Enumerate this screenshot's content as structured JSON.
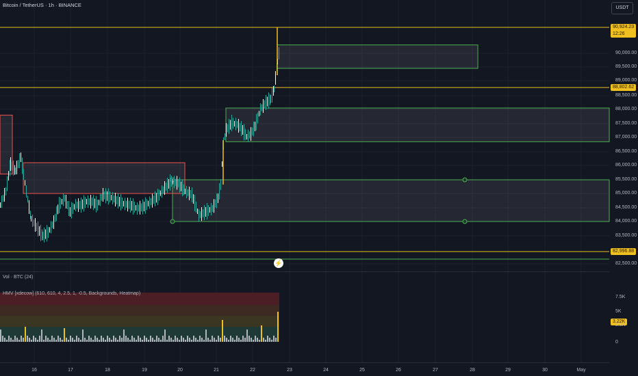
{
  "header": {
    "title": "Bitcoin / TetherUS · 1h · BINANCE",
    "currency": "USDT"
  },
  "colors": {
    "background": "#131722",
    "candle_up": "#26a69a",
    "candle_hi": "#ffffff",
    "green_zone": "#4caf50",
    "red_zone": "#ef5350",
    "yellow_line": "#f0c020",
    "grid": "#1e222d"
  },
  "price_axis": {
    "ticks": [
      "90,000.00",
      "89,500.00",
      "89,000.00",
      "88,500.00",
      "88,000.00",
      "87,500.00",
      "87,000.00",
      "86,500.00",
      "86,000.00",
      "85,500.00",
      "85,000.00",
      "84,500.00",
      "84,000.00",
      "83,500.00",
      "82,500.00"
    ],
    "tick_values": [
      90000,
      89500,
      89000,
      88500,
      88000,
      87500,
      87000,
      86500,
      86000,
      85500,
      85000,
      84500,
      84000,
      83500,
      82500
    ]
  },
  "price_tags": {
    "current_price": "90,924.23",
    "countdown": "12:26",
    "line1": "88,802.62",
    "line2": "82,996.88"
  },
  "zones": [
    {
      "kind": "green",
      "from_day": "22.7",
      "to_day": "28.1",
      "top": 90300,
      "bottom": 89450
    },
    {
      "kind": "green",
      "from_day": "21.2",
      "to_day": "end",
      "top": 88050,
      "bottom": 86850
    },
    {
      "kind": "green",
      "from_day": "19.8",
      "to_day": "end",
      "top": 85500,
      "bottom": 84000
    },
    {
      "kind": "red",
      "from_day": "start",
      "to_day": "15.3",
      "top": 87800,
      "bottom": 85700
    },
    {
      "kind": "red",
      "from_day": "15.6",
      "to_day": "20.1",
      "top": 86100,
      "bottom": 85000
    }
  ],
  "indicators": {
    "volume_label": "Vol · BTC (24)",
    "hmv_label": "HMV [xdecow] (610, 610, 4, 2.5, 1, -0.5, Backgrounds, Heatmap)",
    "vol_axis": [
      "7.5K",
      "5K",
      "2.5K",
      "0"
    ],
    "vol_current": "3.22K"
  },
  "time_axis": [
    "16",
    "17",
    "18",
    "19",
    "20",
    "21",
    "22",
    "23",
    "24",
    "25",
    "26",
    "27",
    "28",
    "29",
    "30",
    "May"
  ]
}
